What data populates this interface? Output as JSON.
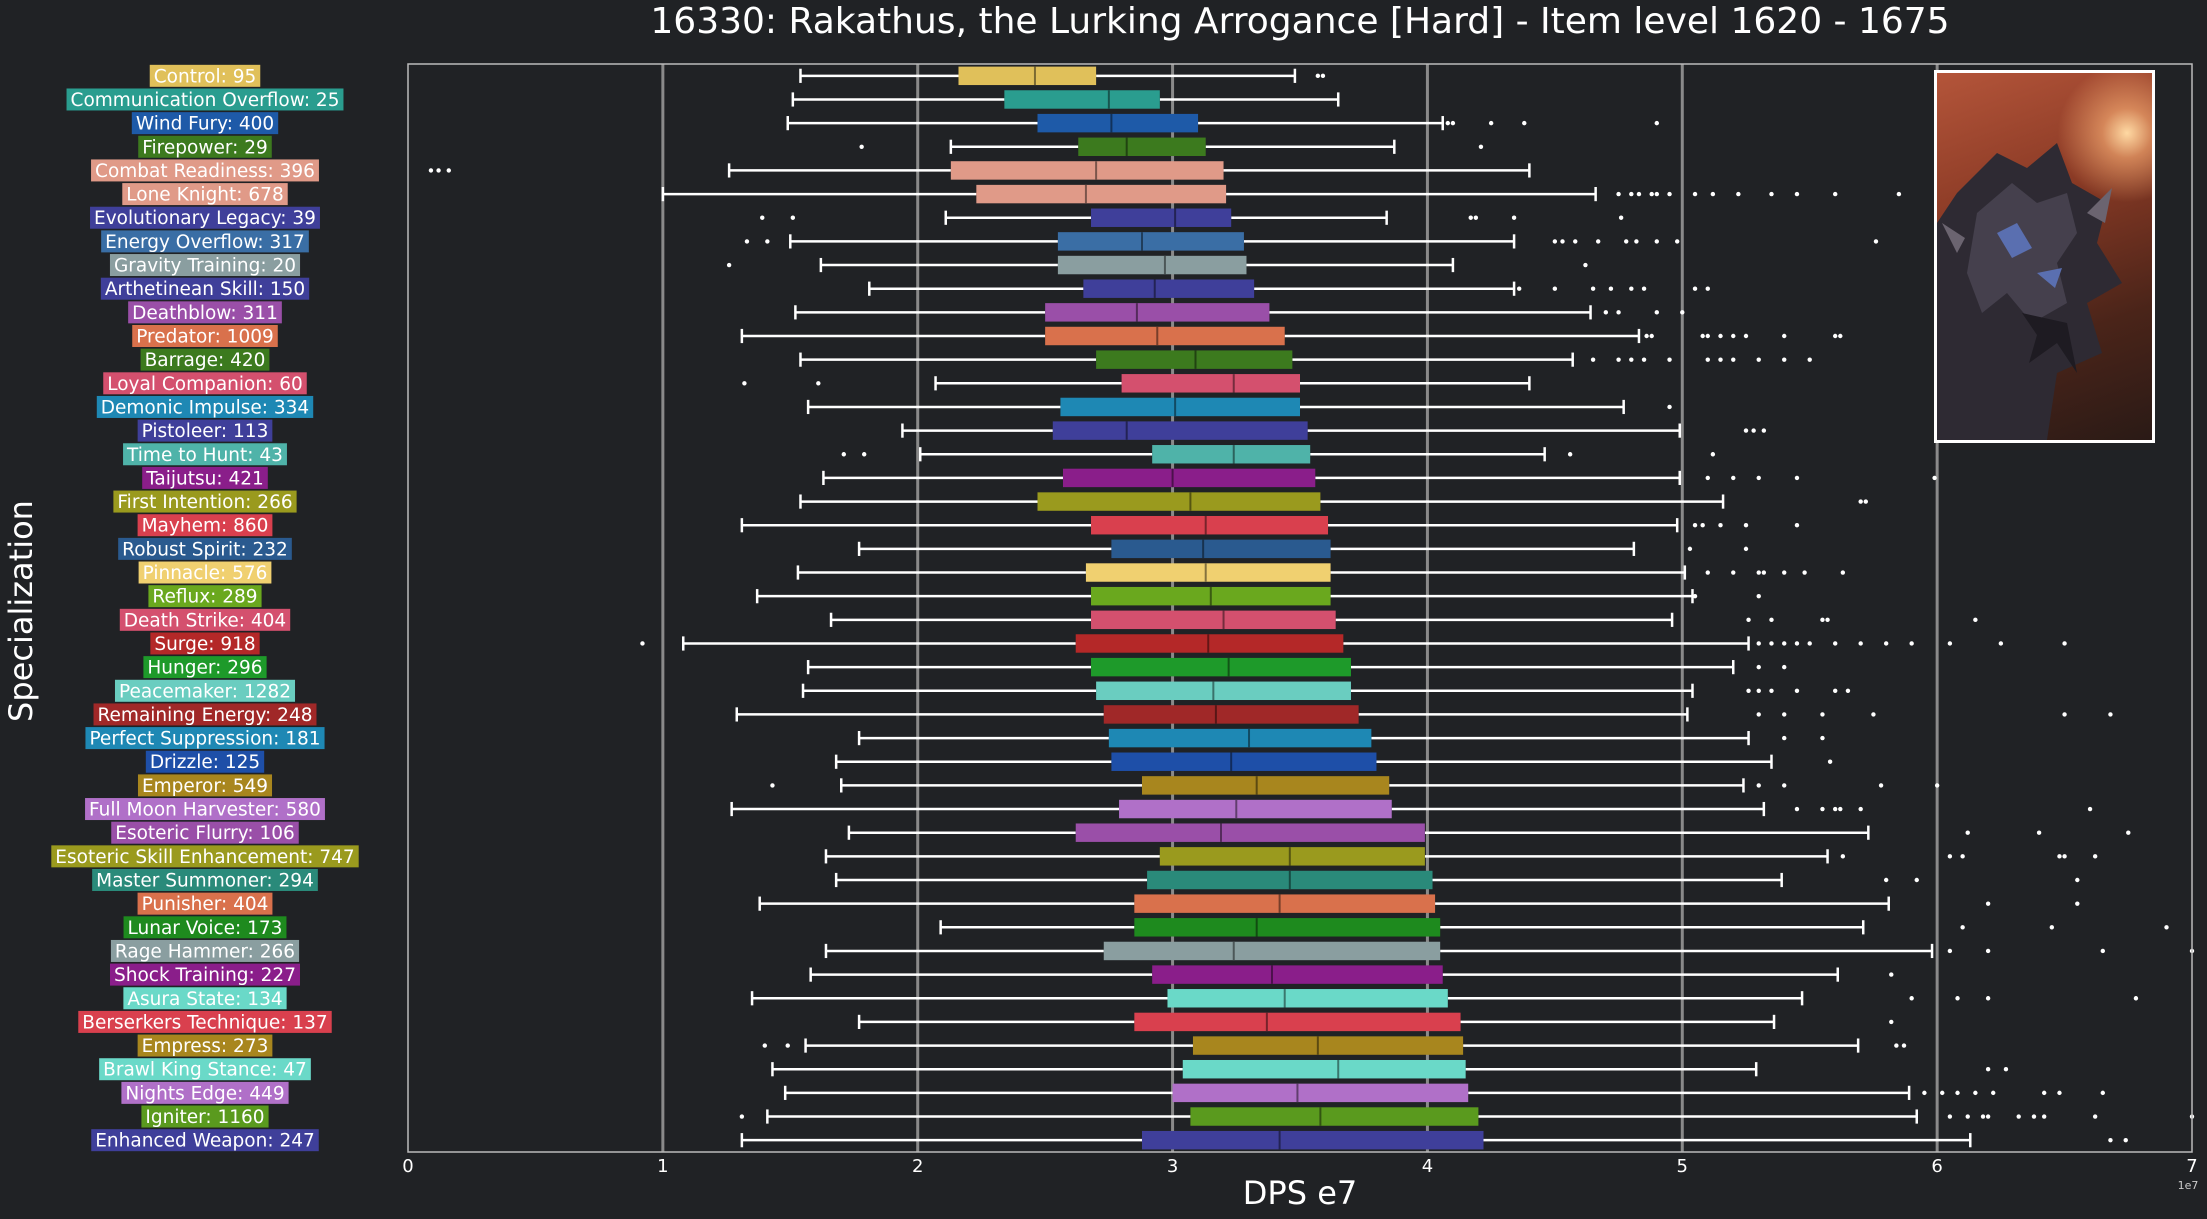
{
  "chart_data": {
    "type": "box",
    "title": "16330: Rakathus, the Lurking Arrogance [Hard] - Item level 1620 - 1675",
    "xlabel": "DPS e7",
    "ylabel": "Specialization",
    "x_scale_label": "1e7",
    "xlim": [
      0,
      7
    ],
    "xticks": [
      "0",
      "1",
      "2",
      "3",
      "4",
      "5",
      "6",
      "7"
    ],
    "grid": "vertical",
    "series": [
      {
        "label": "Control: 95",
        "color": "#e0c05a",
        "whislo": 1.54,
        "q1": 2.16,
        "med": 2.46,
        "q3": 2.7,
        "whishi": 3.48,
        "fliers": [
          3.57,
          3.59
        ]
      },
      {
        "label": "Communication Overflow: 25",
        "color": "#2a9d8f",
        "whislo": 1.51,
        "q1": 2.34,
        "med": 2.75,
        "q3": 2.95,
        "whishi": 3.65,
        "fliers": []
      },
      {
        "label": "Wind Fury: 400",
        "color": "#1e5aa8",
        "whislo": 1.49,
        "q1": 2.47,
        "med": 2.76,
        "q3": 3.1,
        "whishi": 4.06,
        "fliers": [
          4.08,
          4.1,
          4.25,
          4.38,
          4.9
        ]
      },
      {
        "label": "Firepower: 29",
        "color": "#3c7a1e",
        "whislo": 2.13,
        "q1": 2.63,
        "med": 2.82,
        "q3": 3.13,
        "whishi": 3.87,
        "fliers": [
          1.78,
          4.21
        ]
      },
      {
        "label": "Combat Readiness: 396",
        "color": "#e09a88",
        "whislo": 1.26,
        "q1": 2.13,
        "med": 2.7,
        "q3": 3.2,
        "whishi": 4.4,
        "fliers": [
          0.09,
          0.12,
          0.16
        ]
      },
      {
        "label": "Lone Knight: 678",
        "color": "#e09a88",
        "whislo": 1.0,
        "q1": 2.23,
        "med": 2.66,
        "q3": 3.21,
        "whishi": 4.66,
        "fliers": [
          4.75,
          4.8,
          4.83,
          4.88,
          4.9,
          4.95,
          5.05,
          5.12,
          5.22,
          5.35,
          5.45,
          5.6,
          5.85
        ]
      },
      {
        "label": "Evolutionary Legacy: 39",
        "color": "#3f3f9a",
        "whislo": 2.11,
        "q1": 2.68,
        "med": 3.01,
        "q3": 3.23,
        "whishi": 3.84,
        "fliers": [
          1.39,
          1.51,
          4.17,
          4.19,
          4.34,
          4.76
        ]
      },
      {
        "label": "Energy Overflow: 317",
        "color": "#3a6ea5",
        "whislo": 1.5,
        "q1": 2.55,
        "med": 2.88,
        "q3": 3.28,
        "whishi": 4.34,
        "fliers": [
          1.33,
          1.41,
          4.5,
          4.53,
          4.58,
          4.67,
          4.78,
          4.82,
          4.9,
          4.98,
          5.76
        ]
      },
      {
        "label": "Gravity Training: 20",
        "color": "#8a9ea0",
        "whislo": 1.62,
        "q1": 2.55,
        "med": 2.97,
        "q3": 3.29,
        "whishi": 4.1,
        "fliers": [
          1.26,
          4.62
        ]
      },
      {
        "label": "Arthetinean Skill: 150",
        "color": "#3f3f9a",
        "whislo": 1.81,
        "q1": 2.65,
        "med": 2.93,
        "q3": 3.32,
        "whishi": 4.34,
        "fliers": [
          4.36,
          4.5,
          4.65,
          4.72,
          4.8,
          4.85,
          5.05,
          5.1
        ]
      },
      {
        "label": "Deathblow: 311",
        "color": "#9a4fa8",
        "whislo": 1.52,
        "q1": 2.5,
        "med": 2.86,
        "q3": 3.38,
        "whishi": 4.64,
        "fliers": [
          4.7,
          4.75,
          4.9,
          5.0
        ]
      },
      {
        "label": "Predator: 1009",
        "color": "#d9714c",
        "whislo": 1.31,
        "q1": 2.5,
        "med": 2.94,
        "q3": 3.44,
        "whishi": 4.83,
        "fliers": [
          4.86,
          4.88,
          5.08,
          5.1,
          5.15,
          5.2,
          5.25,
          5.4,
          5.6,
          5.62
        ]
      },
      {
        "label": "Barrage: 420",
        "color": "#3c7a1e",
        "whislo": 1.54,
        "q1": 2.7,
        "med": 3.09,
        "q3": 3.47,
        "whishi": 4.57,
        "fliers": [
          4.65,
          4.75,
          4.8,
          4.85,
          4.95,
          5.1,
          5.15,
          5.2,
          5.3,
          5.4,
          5.5
        ]
      },
      {
        "label": "Loyal Companion: 60",
        "color": "#d4506e",
        "whislo": 2.07,
        "q1": 2.8,
        "med": 3.24,
        "q3": 3.5,
        "whishi": 4.4,
        "fliers": [
          1.32,
          1.61
        ]
      },
      {
        "label": "Demonic Impulse: 334",
        "color": "#1e88b4",
        "whislo": 1.57,
        "q1": 2.56,
        "med": 3.01,
        "q3": 3.5,
        "whishi": 4.77,
        "fliers": [
          4.95
        ]
      },
      {
        "label": "Pistoleer: 113",
        "color": "#3f3f9a",
        "whislo": 1.94,
        "q1": 2.53,
        "med": 2.82,
        "q3": 3.53,
        "whishi": 4.99,
        "fliers": [
          5.25,
          5.28,
          5.32
        ]
      },
      {
        "label": "Time to Hunt: 43",
        "color": "#4fb3a9",
        "whislo": 2.01,
        "q1": 2.92,
        "med": 3.24,
        "q3": 3.54,
        "whishi": 4.46,
        "fliers": [
          1.71,
          1.79,
          4.56,
          5.12
        ]
      },
      {
        "label": "Taijutsu: 421",
        "color": "#8a1e8a",
        "whislo": 1.63,
        "q1": 2.57,
        "med": 3.0,
        "q3": 3.56,
        "whishi": 4.99,
        "fliers": [
          5.1,
          5.2,
          5.3,
          5.45,
          5.99
        ]
      },
      {
        "label": "First Intention: 266",
        "color": "#9a9a1e",
        "whislo": 1.54,
        "q1": 2.47,
        "med": 3.07,
        "q3": 3.58,
        "whishi": 5.16,
        "fliers": [
          5.7,
          5.72
        ]
      },
      {
        "label": "Mayhem: 860",
        "color": "#d9404e",
        "whislo": 1.31,
        "q1": 2.68,
        "med": 3.13,
        "q3": 3.61,
        "whishi": 4.98,
        "fliers": [
          5.05,
          5.08,
          5.15,
          5.25,
          5.45
        ]
      },
      {
        "label": "Robust Spirit: 232",
        "color": "#2a5a8f",
        "whislo": 1.77,
        "q1": 2.76,
        "med": 3.12,
        "q3": 3.62,
        "whishi": 4.81,
        "fliers": [
          5.03,
          5.25
        ]
      },
      {
        "label": "Pinnacle: 576",
        "color": "#f0d070",
        "whislo": 1.53,
        "q1": 2.66,
        "med": 3.13,
        "q3": 3.62,
        "whishi": 5.01,
        "fliers": [
          5.1,
          5.2,
          5.3,
          5.32,
          5.4,
          5.48,
          5.63
        ]
      },
      {
        "label": "Reflux: 289",
        "color": "#6aa81e",
        "whislo": 1.37,
        "q1": 2.68,
        "med": 3.15,
        "q3": 3.62,
        "whishi": 5.04,
        "fliers": [
          5.05,
          5.3
        ]
      },
      {
        "label": "Death Strike: 404",
        "color": "#d4506e",
        "whislo": 1.66,
        "q1": 2.68,
        "med": 3.2,
        "q3": 3.64,
        "whishi": 4.96,
        "fliers": [
          5.26,
          5.35,
          5.55,
          5.57,
          6.15
        ]
      },
      {
        "label": "Surge: 918",
        "color": "#b42828",
        "whislo": 1.08,
        "q1": 2.62,
        "med": 3.14,
        "q3": 3.67,
        "whishi": 5.26,
        "fliers": [
          0.92,
          5.3,
          5.35,
          5.4,
          5.45,
          5.5,
          5.6,
          5.7,
          5.8,
          5.9,
          6.05,
          6.25,
          6.5
        ]
      },
      {
        "label": "Hunger: 296",
        "color": "#1e9a2a",
        "whislo": 1.57,
        "q1": 2.68,
        "med": 3.22,
        "q3": 3.7,
        "whishi": 5.2,
        "fliers": [
          5.3,
          5.4
        ]
      },
      {
        "label": "Peacemaker: 1282",
        "color": "#6acdc0",
        "whislo": 1.55,
        "q1": 2.7,
        "med": 3.16,
        "q3": 3.7,
        "whishi": 5.04,
        "fliers": [
          5.26,
          5.3,
          5.35,
          5.45,
          5.6,
          5.65
        ]
      },
      {
        "label": "Remaining Energy: 248",
        "color": "#a02828",
        "whislo": 1.29,
        "q1": 2.73,
        "med": 3.17,
        "q3": 3.73,
        "whishi": 5.02,
        "fliers": [
          5.3,
          5.4,
          5.55,
          5.75,
          6.5,
          6.68
        ]
      },
      {
        "label": "Perfect Suppression: 181",
        "color": "#1e88b4",
        "whislo": 1.77,
        "q1": 2.75,
        "med": 3.3,
        "q3": 3.78,
        "whishi": 5.26,
        "fliers": [
          5.4,
          5.55
        ]
      },
      {
        "label": "Drizzle: 125",
        "color": "#1e4fa8",
        "whislo": 1.68,
        "q1": 2.76,
        "med": 3.23,
        "q3": 3.8,
        "whishi": 5.35,
        "fliers": [
          5.58
        ]
      },
      {
        "label": "Emperor: 549",
        "color": "#a8861e",
        "whislo": 1.7,
        "q1": 2.88,
        "med": 3.33,
        "q3": 3.85,
        "whishi": 5.24,
        "fliers": [
          1.43,
          5.3,
          5.4,
          5.78,
          6.0
        ]
      },
      {
        "label": "Full Moon Harvester: 580",
        "color": "#b070c8",
        "whislo": 1.27,
        "q1": 2.79,
        "med": 3.25,
        "q3": 3.86,
        "whishi": 5.32,
        "fliers": [
          5.45,
          5.55,
          5.6,
          5.62,
          5.7,
          6.6
        ]
      },
      {
        "label": "Esoteric Flurry: 106",
        "color": "#9a4fa8",
        "whislo": 1.73,
        "q1": 2.62,
        "med": 3.19,
        "q3": 3.99,
        "whishi": 5.73,
        "fliers": [
          6.12,
          6.4,
          6.75
        ]
      },
      {
        "label": "Esoteric Skill Enhancement: 747",
        "color": "#9a9a1e",
        "whislo": 1.64,
        "q1": 2.95,
        "med": 3.46,
        "q3": 3.99,
        "whishi": 5.57,
        "fliers": [
          5.63,
          6.05,
          6.1,
          6.48,
          6.5,
          6.62
        ]
      },
      {
        "label": "Master Summoner: 294",
        "color": "#2a8a7a",
        "whislo": 1.68,
        "q1": 2.9,
        "med": 3.46,
        "q3": 4.02,
        "whishi": 5.39,
        "fliers": [
          5.8,
          5.92,
          6.55
        ]
      },
      {
        "label": "Punisher: 404",
        "color": "#d9714c",
        "whislo": 1.38,
        "q1": 2.85,
        "med": 3.42,
        "q3": 4.03,
        "whishi": 5.81,
        "fliers": [
          6.2,
          6.55
        ]
      },
      {
        "label": "Lunar Voice: 173",
        "color": "#1e8a1e",
        "whislo": 2.09,
        "q1": 2.85,
        "med": 3.33,
        "q3": 4.05,
        "whishi": 5.71,
        "fliers": [
          6.1,
          6.45,
          6.9
        ]
      },
      {
        "label": "Rage Hammer: 266",
        "color": "#8a9ea0",
        "whislo": 1.64,
        "q1": 2.73,
        "med": 3.24,
        "q3": 4.05,
        "whishi": 5.98,
        "fliers": [
          6.05,
          6.2,
          6.65,
          7.0
        ]
      },
      {
        "label": "Shock Training: 227",
        "color": "#8a1e8a",
        "whislo": 1.58,
        "q1": 2.92,
        "med": 3.39,
        "q3": 4.06,
        "whishi": 5.61,
        "fliers": [
          5.82
        ]
      },
      {
        "label": "Asura State: 134",
        "color": "#6ad9c8",
        "whislo": 1.35,
        "q1": 2.98,
        "med": 3.44,
        "q3": 4.08,
        "whishi": 5.47,
        "fliers": [
          5.9,
          6.08,
          6.2,
          6.78
        ]
      },
      {
        "label": "Berserkers Technique: 137",
        "color": "#d9404e",
        "whislo": 1.77,
        "q1": 2.85,
        "med": 3.37,
        "q3": 4.13,
        "whishi": 5.36,
        "fliers": [
          5.82
        ]
      },
      {
        "label": "Empress: 273",
        "color": "#a8861e",
        "whislo": 1.56,
        "q1": 3.08,
        "med": 3.57,
        "q3": 4.14,
        "whishi": 5.69,
        "fliers": [
          1.4,
          1.49,
          5.84,
          5.87
        ]
      },
      {
        "label": "Brawl King Stance: 47",
        "color": "#6ad9c8",
        "whislo": 1.43,
        "q1": 3.04,
        "med": 3.65,
        "q3": 4.15,
        "whishi": 5.29,
        "fliers": [
          6.2,
          6.27
        ]
      },
      {
        "label": "Nights Edge: 449",
        "color": "#b070c8",
        "whislo": 1.48,
        "q1": 3.0,
        "med": 3.49,
        "q3": 4.16,
        "whishi": 5.89,
        "fliers": [
          5.95,
          6.02,
          6.08,
          6.15,
          6.22,
          6.42,
          6.48,
          6.65
        ]
      },
      {
        "label": "Igniter: 1160",
        "color": "#5a9a1e",
        "whislo": 1.41,
        "q1": 3.07,
        "med": 3.58,
        "q3": 4.2,
        "whishi": 5.92,
        "fliers": [
          1.31,
          6.05,
          6.12,
          6.18,
          6.2,
          6.32,
          6.38,
          6.42,
          6.62,
          7.0
        ]
      },
      {
        "label": "Enhanced Weapon: 247",
        "color": "#3f3f9a",
        "whislo": 1.31,
        "q1": 2.88,
        "med": 3.42,
        "q3": 4.22,
        "whishi": 6.13,
        "fliers": [
          6.68,
          6.74
        ]
      }
    ]
  }
}
